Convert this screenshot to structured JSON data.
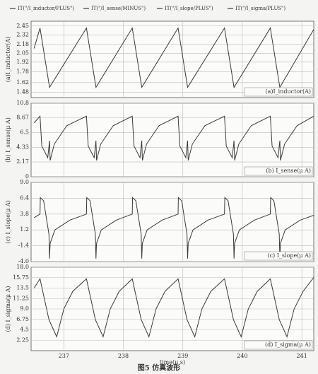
{
  "caption": "图5  仿真波形",
  "chart_data": [
    {
      "type": "line",
      "ylabel": "(a)I_inductor(A)",
      "annotation": "(a)I_inductor(A)",
      "xlim": [
        236.45,
        241.2
      ],
      "ylim": [
        1.4,
        2.52
      ],
      "yticks": [
        1.48,
        1.62,
        1.78,
        1.92,
        2.05,
        2.18,
        2.32,
        2.45
      ],
      "grid": true,
      "x": [
        236.5,
        236.6,
        236.76,
        237.38,
        237.54,
        238.15,
        238.31,
        238.92,
        239.08,
        239.7,
        239.86,
        240.47,
        240.63,
        241.2
      ],
      "series": [
        {
          "name": "IT(\"/I_inductor/PLUS\")",
          "color": "#3a3a3a",
          "values": [
            2.12,
            2.42,
            1.55,
            2.42,
            1.55,
            2.42,
            1.55,
            2.42,
            1.55,
            2.42,
            1.55,
            2.42,
            1.55,
            2.4
          ]
        }
      ]
    },
    {
      "type": "line",
      "ylabel": "(b) I_sense(μ A)",
      "annotation": "(b) I_sense(μ A)",
      "xlim": [
        236.45,
        241.2
      ],
      "ylim": [
        0,
        10.8
      ],
      "yticks": [
        0,
        2.17,
        4.33,
        6.5,
        8.67,
        10.8
      ],
      "grid": true,
      "x": [
        236.5,
        236.6,
        236.63,
        236.73,
        236.76,
        236.77,
        236.84,
        237.05,
        237.38,
        237.41,
        237.51,
        237.54,
        237.55,
        237.62,
        237.83,
        238.15,
        238.18,
        238.28,
        238.31,
        238.32,
        238.39,
        238.6,
        238.92,
        238.95,
        239.05,
        239.08,
        239.09,
        239.16,
        239.37,
        239.7,
        239.73,
        239.83,
        239.86,
        239.87,
        239.94,
        240.15,
        240.47,
        240.5,
        240.6,
        240.63,
        240.64,
        240.71,
        240.92,
        241.2
      ],
      "series": [
        {
          "name": "IT(\"/I_sense/MINUS\")",
          "color": "#3a3a3a",
          "values": [
            7.9,
            8.9,
            4.5,
            2.8,
            5.3,
            2.4,
            4.8,
            7.5,
            8.9,
            4.5,
            2.8,
            5.3,
            2.4,
            4.8,
            7.5,
            8.9,
            4.5,
            2.8,
            5.3,
            2.4,
            4.8,
            7.5,
            8.9,
            4.5,
            2.8,
            5.3,
            2.4,
            4.8,
            7.5,
            8.9,
            4.5,
            2.8,
            5.3,
            2.4,
            4.8,
            7.5,
            8.9,
            4.5,
            2.8,
            5.3,
            2.4,
            4.8,
            7.5,
            8.9
          ]
        }
      ]
    },
    {
      "type": "line",
      "ylabel": "(c) I_slope(μ A)",
      "annotation": "(c) I_slope(μ A)",
      "xlim": [
        236.45,
        241.2
      ],
      "ylim": [
        -4,
        9
      ],
      "yticks": [
        {
          "value": -4,
          "label": "-4.0"
        },
        -1.4,
        1.2,
        3.8,
        6.4,
        {
          "value": 9,
          "label": "9.0"
        }
      ],
      "grid": true,
      "x": [
        236.5,
        236.6,
        236.605,
        236.66,
        236.75,
        236.76,
        236.77,
        236.85,
        237.1,
        237.38,
        237.385,
        237.44,
        237.53,
        237.54,
        237.55,
        237.63,
        237.88,
        238.15,
        238.155,
        238.21,
        238.3,
        238.31,
        238.32,
        238.4,
        238.65,
        238.92,
        238.925,
        238.98,
        239.07,
        239.08,
        239.09,
        239.17,
        239.42,
        239.7,
        239.705,
        239.76,
        239.85,
        239.86,
        239.87,
        239.95,
        240.2,
        240.47,
        240.475,
        240.53,
        240.62,
        240.63,
        240.64,
        240.72,
        240.97,
        241.2
      ],
      "series": [
        {
          "name": "IT(\"/I_slope/PLUS\")",
          "color": "#3a3a3a",
          "values": [
            3.2,
            3.8,
            6.5,
            6.0,
            0.5,
            -3.5,
            -1.0,
            1.2,
            2.8,
            3.8,
            6.5,
            6.0,
            0.5,
            -3.5,
            -1.0,
            1.2,
            2.8,
            3.8,
            6.5,
            6.0,
            0.5,
            -3.5,
            -1.0,
            1.2,
            2.8,
            3.8,
            6.5,
            6.0,
            0.5,
            -3.5,
            -1.0,
            1.2,
            2.8,
            3.8,
            6.5,
            6.0,
            0.5,
            -3.5,
            -1.0,
            1.2,
            2.8,
            3.8,
            6.5,
            6.0,
            0.5,
            -3.5,
            -1.0,
            1.2,
            2.8,
            3.6
          ]
        }
      ]
    },
    {
      "type": "line",
      "ylabel": "(d) I_sigma(μ A)",
      "annotation": "(d) I_sigma(μ A)",
      "xlabel": "time(μ s)",
      "xlim": [
        236.45,
        241.2
      ],
      "ylim": [
        0,
        18
      ],
      "xticks": [
        237,
        238,
        239,
        240,
        241
      ],
      "yticks": [
        2.25,
        4.5,
        6.75,
        {
          "value": 9,
          "label": "9.0"
        },
        11.25,
        13.5,
        15.75,
        {
          "value": 18,
          "label": "18.0"
        }
      ],
      "grid": true,
      "x": [
        236.5,
        236.6,
        236.75,
        236.88,
        237.0,
        237.15,
        237.38,
        237.53,
        237.66,
        237.78,
        237.93,
        238.15,
        238.3,
        238.43,
        238.55,
        238.7,
        238.92,
        239.07,
        239.2,
        239.32,
        239.47,
        239.7,
        239.85,
        239.98,
        240.1,
        240.25,
        240.47,
        240.62,
        240.75,
        240.87,
        241.02,
        241.2
      ],
      "series": [
        {
          "name": "IT(\"/I_sigma/PLUS\")",
          "color": "#3a3a3a",
          "values": [
            13.5,
            15.5,
            6.7,
            3.0,
            9.0,
            12.8,
            15.5,
            6.7,
            3.0,
            9.0,
            12.8,
            15.5,
            6.7,
            3.0,
            9.0,
            12.8,
            15.5,
            6.7,
            3.0,
            9.0,
            12.8,
            15.5,
            6.7,
            3.0,
            9.0,
            12.8,
            15.5,
            6.7,
            3.0,
            9.0,
            12.8,
            15.8
          ]
        }
      ]
    }
  ]
}
